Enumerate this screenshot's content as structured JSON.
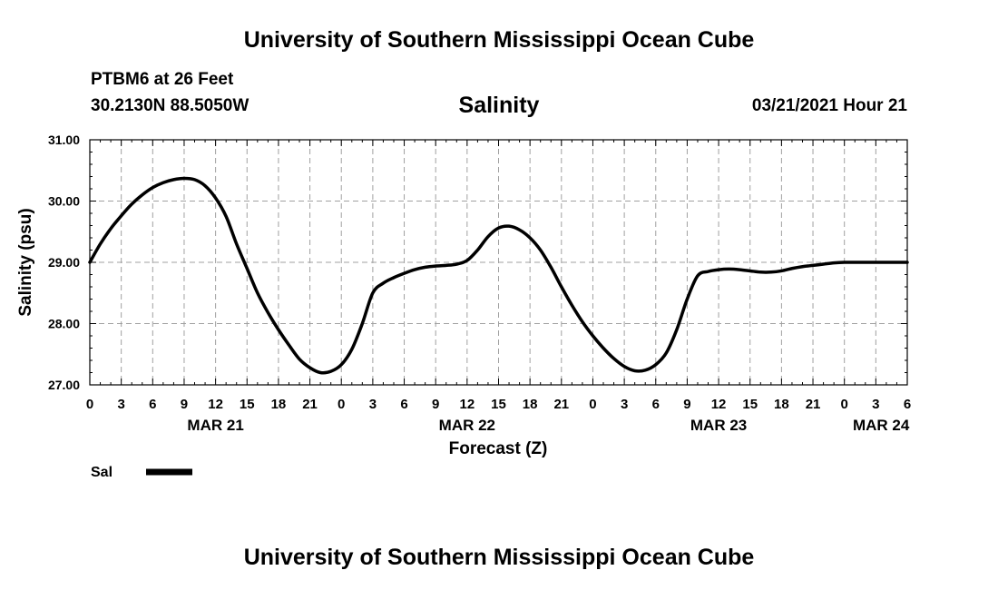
{
  "header": {
    "title": "University of Southern Mississippi Ocean Cube",
    "station": "PTBM6 at 26 Feet",
    "coordinates": "30.2130N 88.5050W",
    "datetime": "03/21/2021 Hour 21"
  },
  "footer": {
    "title": "University of Southern Mississippi Ocean Cube"
  },
  "colors": {
    "line": "#000000",
    "grid": "#a0a0a0",
    "background": "#ffffff"
  },
  "chart_data": {
    "type": "line",
    "title": "Salinity",
    "xlabel": "Forecast (Z)",
    "ylabel": "Salinity (psu)",
    "xlim": [
      0,
      78
    ],
    "ylim": [
      27,
      31
    ],
    "grid": true,
    "x_tick_labels": [
      "0",
      "3",
      "6",
      "9",
      "12",
      "15",
      "18",
      "21",
      "0",
      "3",
      "6",
      "9",
      "12",
      "15",
      "18",
      "21",
      "0",
      "3",
      "6",
      "9",
      "12",
      "15",
      "18",
      "21",
      "0",
      "3",
      "6"
    ],
    "y_tick_labels": [
      "27.00",
      "28.00",
      "29.00",
      "30.00",
      "31.00"
    ],
    "y_ticks": [
      27,
      28,
      29,
      30,
      31
    ],
    "date_labels": [
      {
        "hour": 12,
        "label": "MAR 21"
      },
      {
        "hour": 36,
        "label": "MAR 22"
      },
      {
        "hour": 60,
        "label": "MAR 23"
      },
      {
        "hour": 75.5,
        "label": "MAR 24"
      }
    ],
    "legend": [
      {
        "name": "Sal",
        "position": "bottom-left"
      }
    ],
    "series": [
      {
        "name": "Sal",
        "x": [
          0,
          1,
          2,
          3,
          4,
          5,
          6,
          7,
          8,
          9,
          10,
          11,
          12,
          13,
          14,
          15,
          16,
          17,
          18,
          19,
          20,
          21,
          22,
          23,
          24,
          25,
          26,
          27,
          28,
          29,
          30,
          31,
          32,
          33,
          34,
          35,
          36,
          37,
          38,
          39,
          40,
          41,
          42,
          43,
          44,
          45,
          46,
          47,
          48,
          49,
          50,
          51,
          52,
          53,
          54,
          55,
          56,
          57,
          58,
          59,
          60,
          61,
          62,
          63,
          64,
          65,
          66,
          67,
          68,
          69,
          70,
          71,
          72,
          73,
          74,
          75,
          76,
          77,
          78
        ],
        "values": [
          29.0,
          29.3,
          29.55,
          29.76,
          29.95,
          30.1,
          30.22,
          30.3,
          30.35,
          30.37,
          30.35,
          30.25,
          30.05,
          29.75,
          29.3,
          28.9,
          28.5,
          28.18,
          27.9,
          27.65,
          27.42,
          27.28,
          27.2,
          27.22,
          27.33,
          27.58,
          28.0,
          28.5,
          28.66,
          28.75,
          28.82,
          28.88,
          28.92,
          28.94,
          28.95,
          28.97,
          29.03,
          29.2,
          29.42,
          29.56,
          29.59,
          29.53,
          29.4,
          29.2,
          28.92,
          28.6,
          28.3,
          28.03,
          27.8,
          27.6,
          27.43,
          27.3,
          27.23,
          27.24,
          27.33,
          27.52,
          27.9,
          28.4,
          28.78,
          28.85,
          28.88,
          28.89,
          28.88,
          28.86,
          28.84,
          28.84,
          28.86,
          28.9,
          28.93,
          28.95,
          28.97,
          28.99,
          29.0,
          29.0,
          29.0,
          29.0,
          29.0,
          29.0,
          29.0
        ]
      }
    ]
  }
}
